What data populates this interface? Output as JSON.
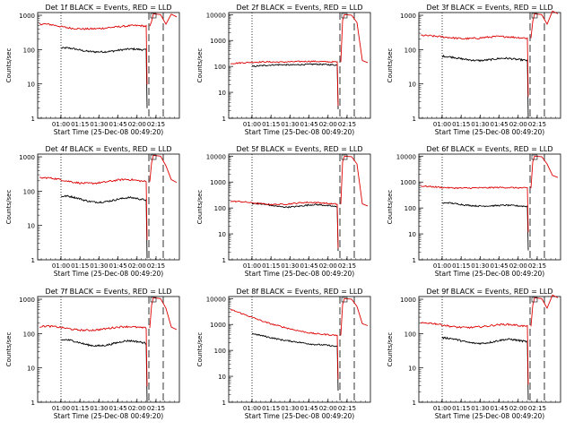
{
  "chart_data": [
    {
      "type": "line",
      "title": "Det 1f BLACK = Events, RED = LLD",
      "xlabel": "Start Time (25-Dec-08 00:49:20)",
      "ylabel": "Counts/sec",
      "x_ticks": [
        "01:00",
        "01:15",
        "01:30",
        "01:45",
        "02:00",
        "02:15"
      ],
      "y_ticks": [
        "1",
        "10",
        "100",
        "1000"
      ],
      "y_scale": "log",
      "ylim": [
        1,
        1200
      ],
      "series": [
        {
          "name": "Events",
          "color": "#000000",
          "values": [
            110,
            112,
            108,
            100,
            92,
            88,
            86,
            86,
            87,
            90,
            95,
            100,
            104,
            104,
            100,
            98
          ]
        },
        {
          "name": "LLD",
          "color": "#dd0000",
          "values": [
            560,
            550,
            520,
            470,
            430,
            410,
            400,
            400,
            405,
            420,
            440,
            460,
            480,
            500,
            500,
            480
          ]
        }
      ],
      "burst_peak": 1100,
      "burst_end": 900
    },
    {
      "type": "line",
      "title": "Det 2f BLACK = Events, RED = LLD",
      "xlabel": "Start Time (25-Dec-08 00:49:20)",
      "ylabel": "Counts/sec",
      "x_ticks": [
        "01:00",
        "01:15",
        "01:30",
        "01:45",
        "02:00",
        "02:15"
      ],
      "y_ticks": [
        "1",
        "10",
        "100",
        "1000",
        "10000"
      ],
      "y_scale": "log",
      "ylim": [
        1,
        12000
      ],
      "series": [
        {
          "name": "Events",
          "color": "#000000",
          "values": [
            100,
            104,
            108,
            112,
            115,
            116,
            115,
            114,
            116,
            118,
            120,
            122,
            121,
            118,
            116,
            112
          ]
        },
        {
          "name": "LLD",
          "color": "#dd0000",
          "values": [
            130,
            135,
            140,
            145,
            148,
            150,
            148,
            147,
            150,
            152,
            155,
            157,
            156,
            152,
            150,
            148
          ]
        }
      ],
      "burst_peak": 10000,
      "burst_end": 140
    },
    {
      "type": "line",
      "title": "Det 3f BLACK = Events, RED = LLD",
      "xlabel": "Start Time (25-Dec-08 00:49:20)",
      "ylabel": "Counts/sec",
      "x_ticks": [
        "01:00",
        "01:15",
        "01:30",
        "01:45",
        "02:00",
        "02:15"
      ],
      "y_ticks": [
        "1",
        "10",
        "100",
        "1000"
      ],
      "y_scale": "log",
      "ylim": [
        1,
        1200
      ],
      "series": [
        {
          "name": "Events",
          "color": "#000000",
          "values": [
            65,
            62,
            60,
            55,
            52,
            50,
            48,
            48,
            50,
            52,
            55,
            56,
            55,
            52,
            50,
            48
          ]
        },
        {
          "name": "LLD",
          "color": "#dd0000",
          "values": [
            260,
            255,
            245,
            235,
            225,
            215,
            208,
            210,
            215,
            225,
            235,
            240,
            238,
            230,
            222,
            215
          ]
        }
      ],
      "burst_peak": 1100,
      "burst_end": 1100
    },
    {
      "type": "line",
      "title": "Det 4f BLACK = Events, RED = LLD",
      "xlabel": "Start Time (25-Dec-08 00:49:20)",
      "ylabel": "Counts/sec",
      "x_ticks": [
        "01:00",
        "01:15",
        "01:30",
        "01:45",
        "02:00",
        "02:15"
      ],
      "y_ticks": [
        "1",
        "10",
        "100",
        "1000"
      ],
      "y_scale": "log",
      "ylim": [
        1,
        1200
      ],
      "series": [
        {
          "name": "Events",
          "color": "#000000",
          "values": [
            70,
            72,
            68,
            62,
            55,
            50,
            48,
            48,
            50,
            53,
            58,
            62,
            65,
            63,
            58,
            55
          ]
        },
        {
          "name": "LLD",
          "color": "#dd0000",
          "values": [
            240,
            245,
            235,
            215,
            195,
            180,
            170,
            168,
            172,
            180,
            195,
            210,
            220,
            215,
            200,
            190
          ]
        }
      ],
      "burst_peak": 1100,
      "burst_end": 180
    },
    {
      "type": "line",
      "title": "Det 5f BLACK = Events, RED = LLD",
      "xlabel": "Start Time (25-Dec-08 00:49:20)",
      "ylabel": "Counts/sec",
      "x_ticks": [
        "01:00",
        "01:15",
        "01:30",
        "01:45",
        "02:00",
        "02:15"
      ],
      "y_ticks": [
        "1",
        "10",
        "100",
        "1000",
        "10000"
      ],
      "y_scale": "log",
      "ylim": [
        1,
        12000
      ],
      "series": [
        {
          "name": "Events",
          "color": "#000000",
          "values": [
            150,
            148,
            140,
            130,
            120,
            112,
            108,
            110,
            115,
            122,
            130,
            135,
            132,
            125,
            118,
            110
          ]
        },
        {
          "name": "LLD",
          "color": "#dd0000",
          "values": [
            180,
            178,
            170,
            158,
            148,
            140,
            136,
            138,
            142,
            150,
            160,
            165,
            162,
            155,
            146,
            140
          ]
        }
      ],
      "burst_peak": 10000,
      "burst_end": 120
    },
    {
      "type": "line",
      "title": "Det 6f BLACK = Events, RED = LLD",
      "xlabel": "Start Time (25-Dec-08 00:49:20)",
      "ylabel": "Counts/sec",
      "x_ticks": [
        "01:00",
        "01:15",
        "01:30",
        "01:45",
        "02:00",
        "02:15"
      ],
      "y_ticks": [
        "1",
        "10",
        "100",
        "1000",
        "10000"
      ],
      "y_scale": "log",
      "ylim": [
        1,
        12000
      ],
      "series": [
        {
          "name": "Events",
          "color": "#000000",
          "values": [
            150,
            160,
            150,
            140,
            130,
            125,
            120,
            118,
            120,
            122,
            125,
            128,
            126,
            122,
            118,
            115
          ]
        },
        {
          "name": "LLD",
          "color": "#dd0000",
          "values": [
            700,
            680,
            650,
            620,
            600,
            590,
            585,
            590,
            595,
            600,
            610,
            620,
            615,
            605,
            595,
            585
          ]
        }
      ],
      "burst_peak": 10000,
      "burst_end": 1500
    },
    {
      "type": "line",
      "title": "Det 7f BLACK = Events, RED = LLD",
      "xlabel": "Start Time (25-Dec-08 00:49:20)",
      "ylabel": "Counts/sec",
      "x_ticks": [
        "01:00",
        "01:15",
        "01:30",
        "01:45",
        "02:00",
        "02:15"
      ],
      "y_ticks": [
        "1",
        "10",
        "100",
        "1000"
      ],
      "y_scale": "log",
      "ylim": [
        1,
        1200
      ],
      "series": [
        {
          "name": "Events",
          "color": "#000000",
          "values": [
            65,
            66,
            62,
            56,
            50,
            46,
            44,
            44,
            46,
            50,
            55,
            60,
            62,
            60,
            56,
            52
          ]
        },
        {
          "name": "LLD",
          "color": "#dd0000",
          "values": [
            160,
            165,
            160,
            150,
            140,
            130,
            125,
            125,
            128,
            135,
            145,
            155,
            160,
            158,
            150,
            145
          ]
        }
      ],
      "burst_peak": 1100,
      "burst_end": 130
    },
    {
      "type": "line",
      "title": "Det 8f BLACK = Events, RED = LLD",
      "xlabel": "Start Time (25-Dec-08 00:49:20)",
      "ylabel": "Counts/sec",
      "x_ticks": [
        "01:00",
        "01:15",
        "01:30",
        "01:45",
        "02:00",
        "02:15"
      ],
      "y_ticks": [
        "1",
        "10",
        "100",
        "1000",
        "10000"
      ],
      "y_scale": "log",
      "ylim": [
        1,
        12000
      ],
      "series": [
        {
          "name": "Events",
          "color": "#000000",
          "values": [
            450,
            400,
            360,
            320,
            290,
            260,
            240,
            225,
            210,
            195,
            180,
            170,
            165,
            160,
            150,
            140
          ]
        },
        {
          "name": "LLD",
          "color": "#dd0000",
          "values": [
            3800,
            3000,
            2400,
            1900,
            1500,
            1200,
            1000,
            850,
            720,
            620,
            540,
            480,
            440,
            420,
            400,
            380
          ]
        }
      ],
      "burst_peak": 10000,
      "burst_end": 900
    },
    {
      "type": "line",
      "title": "Det 9f BLACK = Events, RED = LLD",
      "xlabel": "Start Time (25-Dec-08 00:49:20)",
      "ylabel": "Counts/sec",
      "x_ticks": [
        "01:00",
        "01:15",
        "01:30",
        "01:45",
        "02:00",
        "02:15"
      ],
      "y_ticks": [
        "1",
        "10",
        "100",
        "1000"
      ],
      "y_scale": "log",
      "ylim": [
        1,
        1200
      ],
      "series": [
        {
          "name": "Events",
          "color": "#000000",
          "values": [
            75,
            74,
            70,
            64,
            58,
            54,
            52,
            52,
            54,
            58,
            63,
            67,
            68,
            65,
            61,
            58
          ]
        },
        {
          "name": "LLD",
          "color": "#dd0000",
          "values": [
            200,
            205,
            195,
            180,
            165,
            155,
            150,
            150,
            155,
            162,
            172,
            182,
            186,
            180,
            170,
            162
          ]
        }
      ],
      "burst_peak": 1100,
      "burst_end": 1100
    }
  ]
}
